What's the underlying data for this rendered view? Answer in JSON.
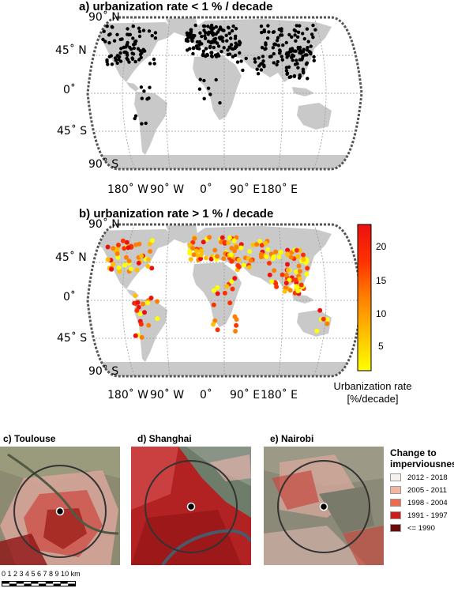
{
  "panels": {
    "a": {
      "title": "a)       urbanization rate < 1 % / decade"
    },
    "b": {
      "title": "b)       urbanization rate > 1 % / decade"
    }
  },
  "axes": {
    "lat_labels": [
      "90˚ N",
      "45˚ N",
      "0˚",
      "45˚ S",
      "90˚ S"
    ],
    "lon_labels": [
      "180˚ W",
      "90˚ W",
      "0˚",
      "90˚ E",
      "180˚ E"
    ]
  },
  "colorbar": {
    "ticks": [
      "20",
      "15",
      "10",
      "5"
    ],
    "label_line1": "Urbanization rate",
    "label_line2": "[%/decade]",
    "colors": [
      "#ffff00",
      "#ffc000",
      "#ff8000",
      "#ff3000",
      "#ee1010"
    ],
    "range": [
      1,
      24
    ]
  },
  "city_panels": [
    {
      "title": "c) Toulouse"
    },
    {
      "title": "d) Shanghai"
    },
    {
      "title": "e) Nairobi"
    }
  ],
  "legend": {
    "title_line1": "Change to",
    "title_line2": "imperviousness",
    "items": [
      {
        "label": "2012 - 2018",
        "color": "#f6f0ee"
      },
      {
        "label": "2005 - 2011",
        "color": "#f4b4a2"
      },
      {
        "label": "1998 - 2004",
        "color": "#ec6c52"
      },
      {
        "label": "1991 - 1997",
        "color": "#cc1c1c"
      },
      {
        "label": "<= 1990",
        "color": "#6a0c0c"
      }
    ]
  },
  "scalebar": {
    "label": "0 1 2 3 4 5 6 7 8 9 10 km"
  },
  "colors": {
    "land": "#c9c9c9",
    "ocean": "#ffffff",
    "dot_low": "#000000"
  }
}
